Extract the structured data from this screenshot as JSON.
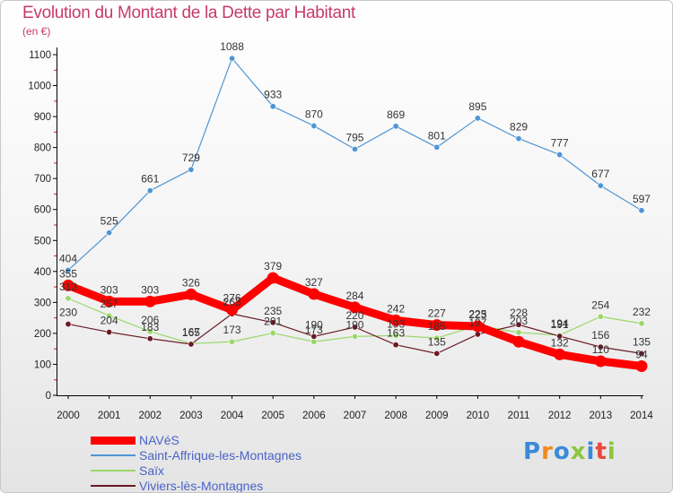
{
  "header": {
    "title": "Evolution du Montant de la Dette par Habitant",
    "unit": "(en €)"
  },
  "brand": {
    "text": "Proxiti",
    "colors": [
      "#3a8ad8",
      "#f08a1e",
      "#3a8ad8",
      "#8cc63f",
      "#3a8ad8",
      "#e84a3a",
      "#8cc63f"
    ]
  },
  "chart_data": {
    "type": "line",
    "title": "Evolution du Montant de la Dette par Habitant",
    "ylabel": "(en €)",
    "xlabel": "",
    "x": [
      2000,
      2001,
      2002,
      2003,
      2004,
      2005,
      2006,
      2007,
      2008,
      2009,
      2010,
      2011,
      2012,
      2013,
      2014
    ],
    "ylim": [
      0,
      1100
    ],
    "yticks": [
      0,
      100,
      200,
      300,
      400,
      500,
      600,
      700,
      800,
      900,
      1000,
      1100
    ],
    "grid": false,
    "legend_position": "bottom-left",
    "series": [
      {
        "name": "NAVéS",
        "color": "#ff0000",
        "values": [
          355,
          303,
          303,
          326,
          276,
          379,
          327,
          284,
          242,
          227,
          223,
          173,
          132,
          110,
          94
        ],
        "labels": [
          "355",
          "303",
          "303",
          "326",
          "276",
          "379",
          "327",
          "284",
          "242",
          "227",
          "223",
          "",
          "132",
          "110",
          "94"
        ],
        "stroke": 9
      },
      {
        "name": "Saint-Affrique-les-Montagnes",
        "color": "#4f95d4",
        "values": [
          404,
          525,
          661,
          729,
          1088,
          933,
          870,
          795,
          869,
          801,
          895,
          829,
          777,
          677,
          597
        ],
        "labels": [
          "404",
          "525",
          "661",
          "729",
          "1088",
          "933",
          "870",
          "795",
          "869",
          "801",
          "895",
          "829",
          "777",
          "677",
          "597"
        ],
        "stroke": 1.2
      },
      {
        "name": "Saïx",
        "color": "#99d86a",
        "values": [
          313,
          257,
          206,
          167,
          173,
          201,
          173,
          190,
          193,
          185,
          225,
          203,
          194,
          254,
          232
        ],
        "labels": [
          "313",
          "257",
          "206",
          "167",
          "173",
          "201",
          "173",
          "190",
          "193",
          "185",
          "225",
          "203",
          "194",
          "254",
          "232"
        ],
        "stroke": 1.2
      },
      {
        "name": "Viviers-lès-Montagnes",
        "color": "#6a1a24",
        "values": [
          230,
          204,
          183,
          165,
          263,
          235,
          190,
          220,
          163,
          135,
          197,
          228,
          191,
          156,
          135
        ],
        "labels": [
          "230",
          "204",
          "183",
          "165",
          "263",
          "235",
          "190",
          "220",
          "163",
          "135",
          "197",
          "228",
          "191",
          "156",
          "135"
        ],
        "stroke": 1.2
      }
    ]
  }
}
